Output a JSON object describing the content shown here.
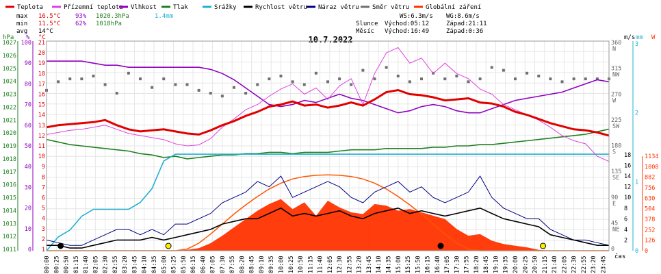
{
  "chart_data": {
    "type": "line",
    "title": "10.7.2022",
    "legend": [
      {
        "name": "Teplota",
        "color": "#e00000"
      },
      {
        "name": "Přízemní teplota",
        "color": "#e040e0"
      },
      {
        "name": "Vlhkost",
        "color": "#9000c0"
      },
      {
        "name": "Tlak",
        "color": "#208020"
      },
      {
        "name": "Srážky",
        "color": "#20b0d0"
      },
      {
        "name": "Rychlost větru",
        "color": "#000000"
      },
      {
        "name": "Náraz větru",
        "color": "#000080"
      },
      {
        "name": "Směr větru",
        "color": "#707070"
      },
      {
        "name": "Globální záření",
        "color": "#ff3300"
      }
    ],
    "stats": {
      "max": {
        "label": "max",
        "temp": "16.5°C",
        "hum": "93%",
        "press": "1020.3hPa",
        "rain": "1.4mm"
      },
      "min": {
        "label": "min",
        "temp": "11.5°C",
        "hum": "62%",
        "press": "1018hPa"
      },
      "avg": {
        "label": "avg",
        "temp": "14°C"
      }
    },
    "info": {
      "ws": "WS:6.3m/s",
      "wg": "WG:8.6m/s",
      "sun_label": "Slunce",
      "sunrise": "Východ:05:12",
      "sunset": "Západ:21:11",
      "moon_label": "Měsíc",
      "moonrise": "Východ:16:49",
      "moonset": "Západ:0:36"
    },
    "axis_units": {
      "hpa": "hPa",
      "pct": "%",
      "degc": "°C",
      "ms": "m/s",
      "mm": "mm",
      "w": "W",
      "time": "čas"
    },
    "axes": {
      "hpa": [
        "1027",
        "1026",
        "1025",
        "1024",
        "1023",
        "1022",
        "1021",
        "1020",
        "1019",
        "1018",
        "1017",
        "1016",
        "1015",
        "1014",
        "1013",
        "1012",
        "1011"
      ],
      "pct": [
        "100",
        "90",
        "80",
        "70",
        "60",
        "50",
        "40",
        "30",
        "20",
        "10",
        "0"
      ],
      "degc": [
        "21",
        "20",
        "19",
        "18",
        "17",
        "16",
        "15",
        "14",
        "13",
        "12",
        "11",
        "10",
        "9",
        "8",
        "7",
        "6",
        "5",
        "4",
        "3",
        "2",
        "1"
      ],
      "ms": [
        "18",
        "16",
        "14",
        "12",
        "10",
        "8",
        "6",
        "4",
        "2"
      ],
      "mm": [
        "3",
        "2",
        "1",
        "0"
      ],
      "w": [
        "1134",
        "1008",
        "882",
        "756",
        "630",
        "504",
        "378",
        "252",
        "126",
        "0"
      ],
      "dir": [
        {
          "deg": "360",
          "name": "N"
        },
        {
          "deg": "315",
          "name": "NW"
        },
        {
          "deg": "270",
          "name": "W"
        },
        {
          "deg": "225",
          "name": "SW"
        },
        {
          "deg": "180",
          "name": "S"
        },
        {
          "deg": "135",
          "name": "SE"
        },
        {
          "deg": "90",
          "name": "E"
        },
        {
          "deg": "45",
          "name": "NE"
        },
        {
          "deg": "0",
          "name": ""
        }
      ],
      "time_ticks": [
        "00:00",
        "00:25",
        "00:50",
        "01:15",
        "01:40",
        "02:05",
        "02:30",
        "02:55",
        "03:20",
        "03:45",
        "04:10",
        "04:35",
        "05:00",
        "05:25",
        "05:50",
        "06:15",
        "06:40",
        "07:05",
        "07:30",
        "07:55",
        "08:20",
        "08:45",
        "09:10",
        "09:35",
        "10:00",
        "10:25",
        "10:50",
        "11:15",
        "11:40",
        "12:05",
        "12:30",
        "12:55",
        "13:20",
        "13:45",
        "14:10",
        "14:35",
        "15:00",
        "15:25",
        "15:50",
        "16:15",
        "16:40",
        "17:05",
        "17:30",
        "17:55",
        "18:20",
        "18:45",
        "19:10",
        "19:35",
        "20:00",
        "20:25",
        "20:50",
        "21:15",
        "21:40",
        "22:05",
        "22:30",
        "22:55",
        "23:20",
        "23:45"
      ]
    },
    "x_hours": [
      0,
      0.5,
      1,
      1.5,
      2,
      2.5,
      3,
      3.5,
      4,
      4.5,
      5,
      5.5,
      6,
      6.5,
      7,
      7.5,
      8,
      8.5,
      9,
      9.5,
      10,
      10.5,
      11,
      11.5,
      12,
      12.5,
      13,
      13.5,
      14,
      14.5,
      15,
      15.5,
      16,
      16.5,
      17,
      17.5,
      18,
      18.5,
      19,
      19.5,
      20,
      20.5,
      21,
      21.5,
      22,
      22.5,
      23,
      23.5,
      24
    ],
    "series": [
      {
        "name": "Teplota",
        "unit": "°C",
        "values": [
          12.8,
          13.0,
          13.1,
          13.2,
          13.3,
          13.5,
          13.0,
          12.6,
          12.4,
          12.5,
          12.6,
          12.4,
          12.2,
          12.1,
          12.5,
          13.0,
          13.4,
          13.9,
          14.3,
          14.8,
          15.0,
          15.3,
          14.9,
          15.0,
          14.7,
          14.9,
          15.2,
          14.9,
          15.5,
          16.2,
          16.4,
          16.0,
          15.9,
          15.7,
          15.4,
          15.5,
          15.6,
          15.2,
          15.1,
          14.8,
          14.3,
          14.0,
          13.6,
          13.2,
          12.9,
          12.6,
          12.5,
          12.3,
          12.0
        ]
      },
      {
        "name": "Přízemní teplota",
        "unit": "°C",
        "values": [
          12.1,
          12.3,
          12.5,
          12.6,
          12.8,
          13.0,
          12.6,
          12.2,
          12.0,
          11.8,
          11.6,
          11.2,
          11.0,
          11.1,
          11.7,
          12.8,
          13.6,
          14.5,
          15.0,
          15.8,
          16.5,
          17.0,
          16.0,
          16.6,
          15.5,
          16.8,
          17.5,
          15.0,
          18.0,
          20.0,
          20.5,
          19.0,
          19.5,
          18.0,
          19.0,
          18.0,
          17.5,
          16.5,
          16.0,
          15.0,
          14.5,
          14.0,
          13.5,
          12.8,
          12.0,
          11.5,
          11.2,
          10.0,
          9.5
        ]
      },
      {
        "name": "Vlhkost",
        "unit": "%",
        "values": [
          91,
          91,
          91,
          91,
          90,
          89,
          89,
          88,
          88,
          88,
          88,
          88,
          88,
          88,
          87,
          85,
          82,
          78,
          74,
          70,
          69,
          70,
          72,
          71,
          73,
          75,
          73,
          72,
          70,
          68,
          66,
          67,
          69,
          70,
          69,
          67,
          66,
          66,
          68,
          70,
          72,
          73,
          74,
          75,
          76,
          78,
          80,
          82,
          81
        ]
      },
      {
        "name": "Tlak",
        "unit": "hPa",
        "values": [
          1019.5,
          1019.3,
          1019.1,
          1019.0,
          1018.9,
          1018.8,
          1018.7,
          1018.6,
          1018.4,
          1018.3,
          1018.1,
          1018.2,
          1018.0,
          1018.1,
          1018.2,
          1018.3,
          1018.3,
          1018.4,
          1018.4,
          1018.5,
          1018.5,
          1018.4,
          1018.5,
          1018.5,
          1018.5,
          1018.6,
          1018.7,
          1018.7,
          1018.7,
          1018.8,
          1018.8,
          1018.8,
          1018.8,
          1018.9,
          1018.9,
          1019.0,
          1019.0,
          1019.1,
          1019.1,
          1019.2,
          1019.3,
          1019.4,
          1019.5,
          1019.6,
          1019.7,
          1019.8,
          1019.9,
          1020.1,
          1020.3
        ]
      },
      {
        "name": "Srážky",
        "unit": "mm",
        "values": [
          0,
          0.2,
          0.3,
          0.5,
          0.6,
          0.6,
          0.6,
          0.6,
          0.7,
          0.9,
          1.3,
          1.4,
          1.4,
          1.4,
          1.4,
          1.4,
          1.4,
          1.4,
          1.4,
          1.4,
          1.4,
          1.4,
          1.4,
          1.4,
          1.4,
          1.4,
          1.4,
          1.4,
          1.4,
          1.4,
          1.4,
          1.4,
          1.4,
          1.4,
          1.4,
          1.4,
          1.4,
          1.4,
          1.4,
          1.4,
          1.4,
          1.4,
          1.4,
          1.4,
          1.4,
          1.4,
          1.4,
          1.4,
          1.4
        ]
      },
      {
        "name": "Rychlost větru",
        "unit": "m/s",
        "values": [
          1,
          1,
          0.5,
          0.5,
          1,
          1.5,
          2,
          2,
          2,
          2.5,
          2,
          2.5,
          3,
          3.5,
          4,
          5,
          5.5,
          6,
          6,
          7,
          8,
          6.5,
          7,
          6.5,
          7,
          7.5,
          6.5,
          6,
          7,
          7.5,
          8,
          7,
          7.5,
          7,
          6.5,
          7,
          7.5,
          8,
          7,
          6,
          5.5,
          5,
          4.5,
          3,
          2.5,
          2,
          1.5,
          1,
          1
        ]
      },
      {
        "name": "Náraz větru",
        "unit": "m/s",
        "values": [
          2,
          1.5,
          1,
          1,
          2,
          3,
          4,
          4,
          3,
          4,
          3,
          5,
          5,
          6,
          7,
          9,
          10,
          11,
          13,
          12,
          14,
          10,
          11,
          12,
          13,
          12,
          10,
          9,
          11,
          12,
          13,
          11,
          12,
          10,
          9,
          10,
          11,
          14,
          10,
          8,
          7,
          6,
          6,
          4,
          3,
          2,
          2,
          1.5,
          1
        ]
      },
      {
        "name": "Směr větru",
        "unit": "°",
        "values": [
          280,
          295,
          300,
          300,
          305,
          290,
          275,
          310,
          300,
          285,
          300,
          290,
          290,
          280,
          275,
          270,
          285,
          275,
          290,
          300,
          305,
          295,
          290,
          310,
          295,
          300,
          290,
          315,
          300,
          320,
          305,
          295,
          300,
          310,
          300,
          305,
          295,
          300,
          320,
          315,
          300,
          310,
          305,
          300,
          295,
          300,
          300,
          300,
          300
        ]
      },
      {
        "name": "Globální záření",
        "unit": "W/m²",
        "values": [
          0,
          0,
          0,
          0,
          0,
          0,
          0,
          0,
          0,
          0,
          0,
          0,
          10,
          30,
          90,
          180,
          280,
          380,
          480,
          560,
          620,
          500,
          580,
          420,
          600,
          520,
          460,
          440,
          560,
          540,
          480,
          500,
          460,
          420,
          380,
          260,
          180,
          200,
          120,
          80,
          60,
          40,
          10,
          0,
          0,
          0,
          0,
          0,
          0
        ]
      },
      {
        "name": "Teoretické záření",
        "unit": "W/m²",
        "values": [
          0,
          0,
          0,
          0,
          0,
          0,
          0,
          0,
          0,
          0,
          0,
          0,
          20,
          90,
          200,
          320,
          440,
          550,
          650,
          740,
          810,
          860,
          890,
          905,
          910,
          905,
          890,
          860,
          810,
          740,
          650,
          550,
          440,
          320,
          200,
          90,
          20,
          0,
          0,
          0,
          0,
          0,
          0,
          0,
          0,
          0,
          0,
          0,
          0
        ]
      }
    ]
  }
}
